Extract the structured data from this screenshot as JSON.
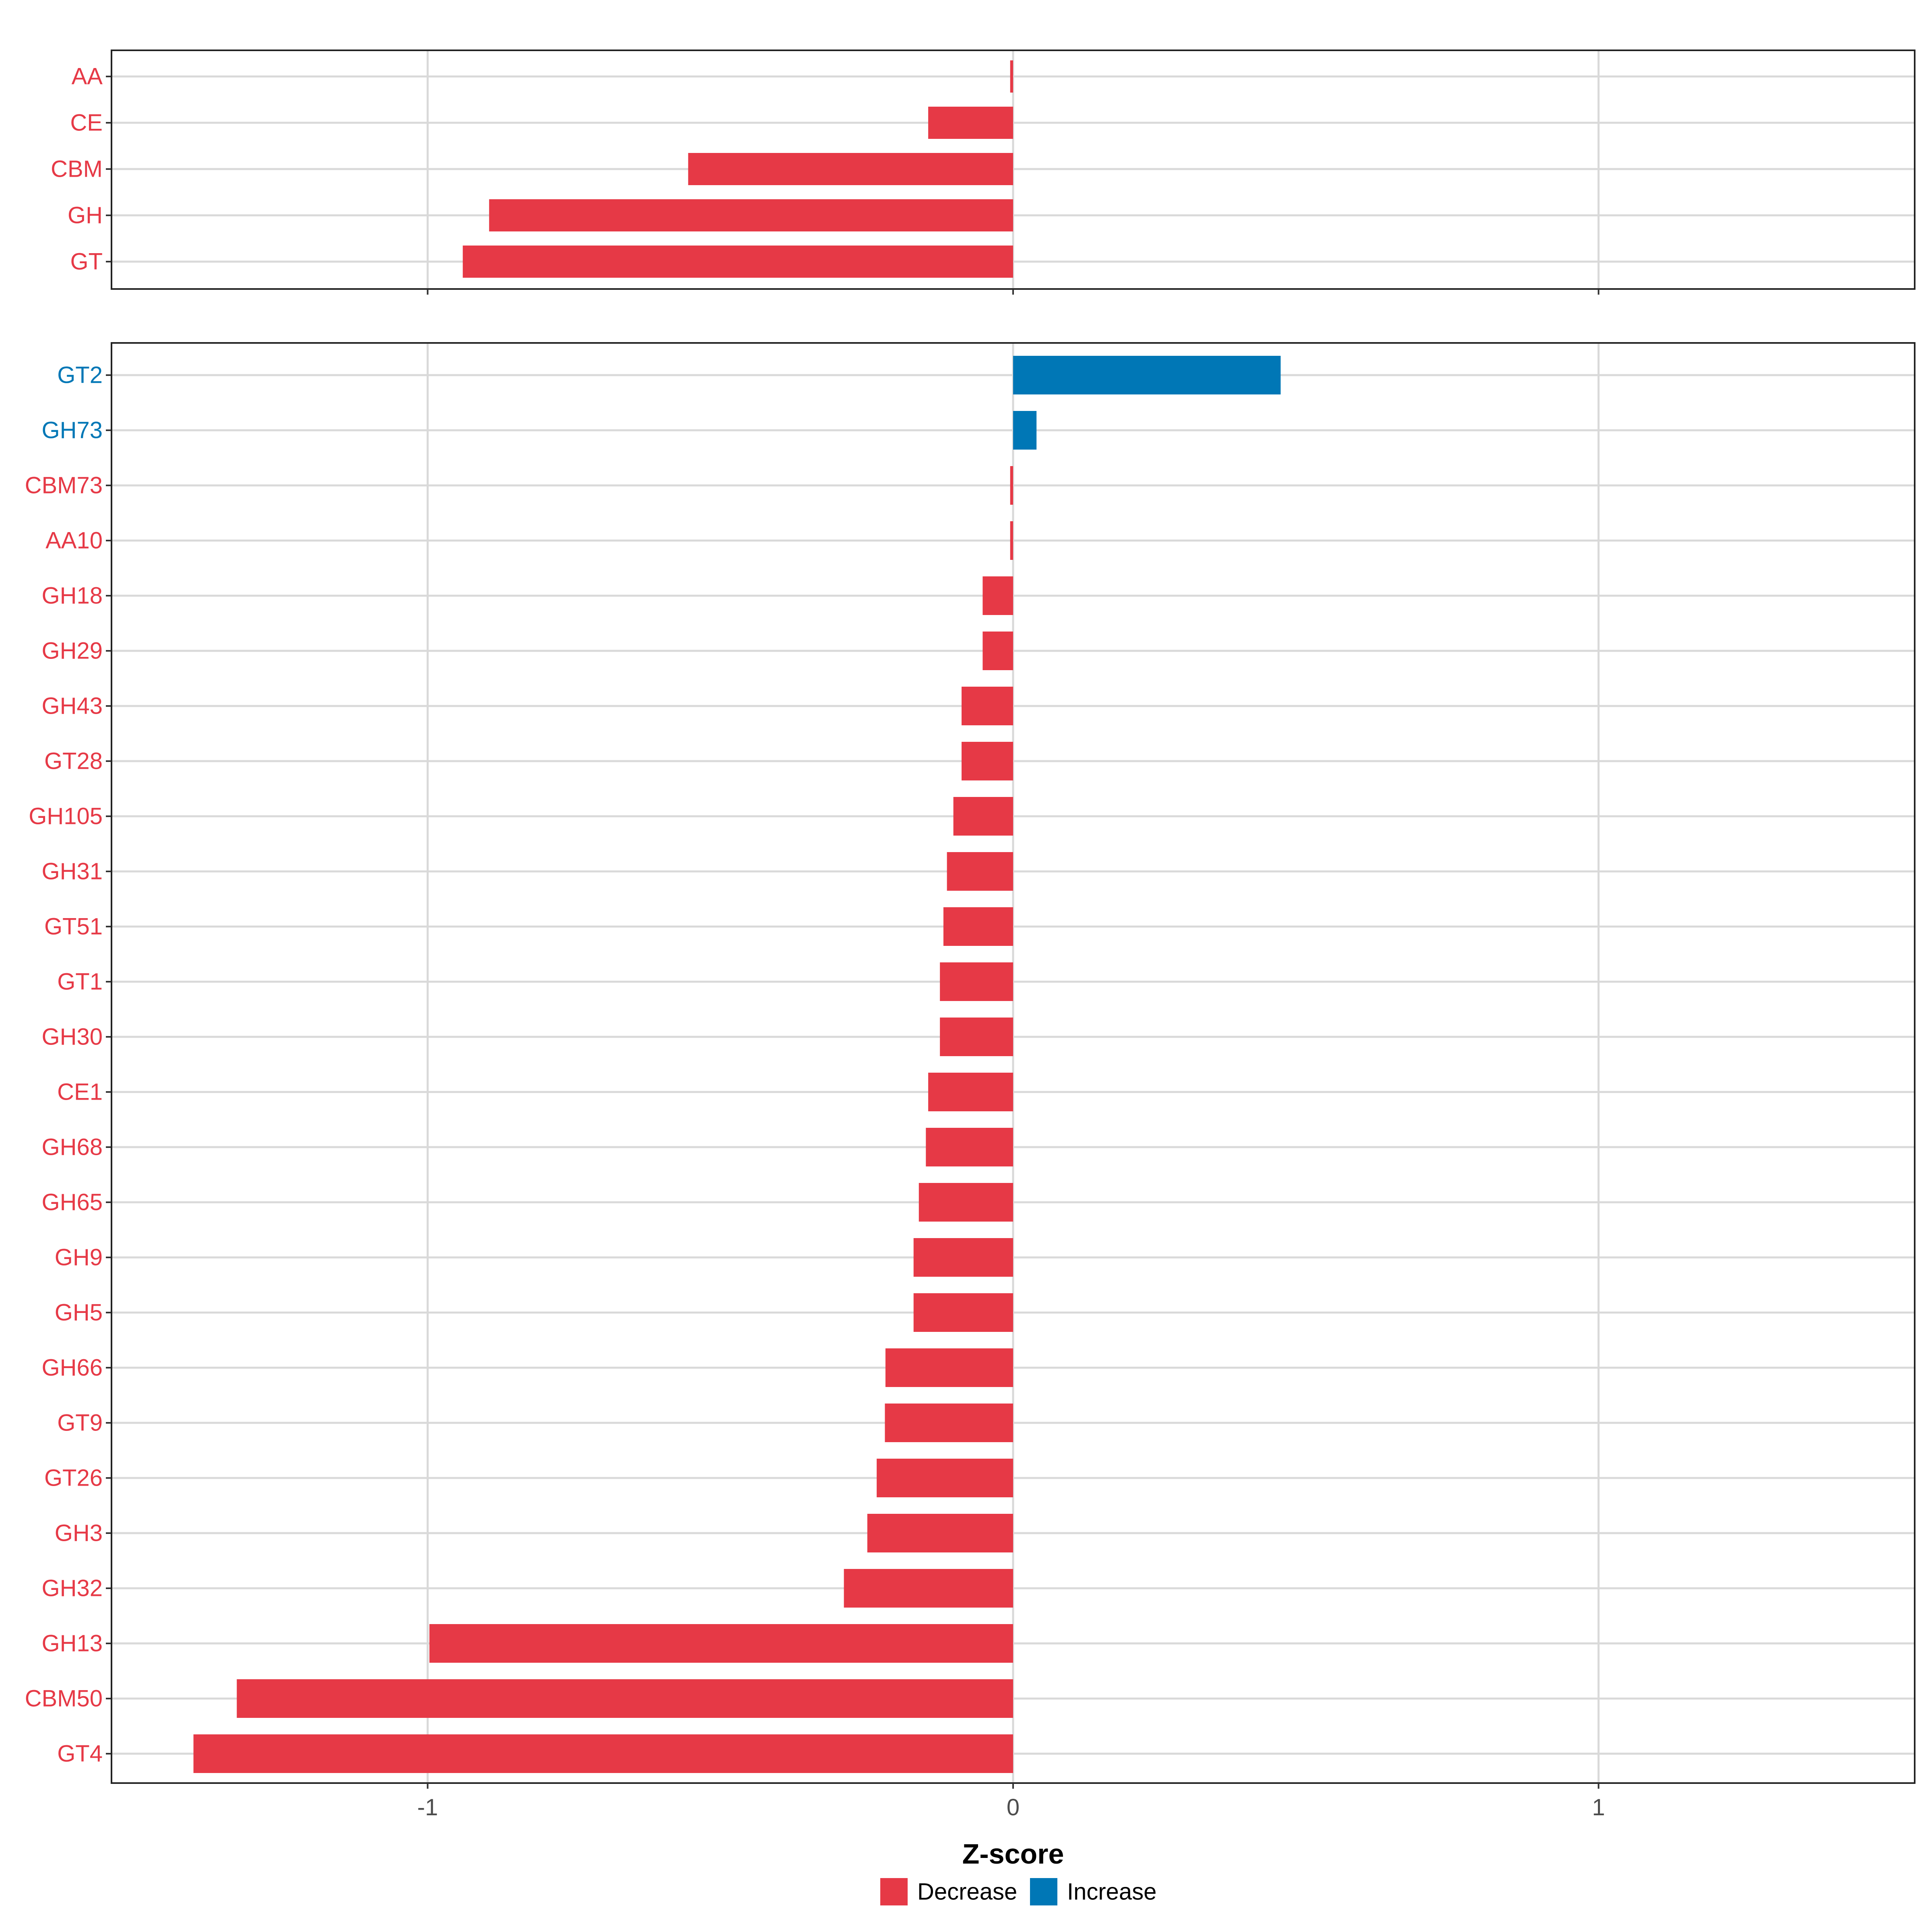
{
  "colors": {
    "Decrease": "#E63946",
    "Increase": "#0077B6"
  },
  "chart_data": {
    "type": "bar",
    "orientation": "horizontal",
    "xlabel": "Z-score",
    "xlim": [
      -1.54,
      1.54
    ],
    "xticks": [
      -1,
      0,
      1
    ],
    "xtick_labels": [
      "-1",
      "0",
      "1"
    ],
    "grid": true,
    "legend": {
      "position": "bottom",
      "entries": [
        {
          "name": "Decrease",
          "color": "#E63946"
        },
        {
          "name": "Increase",
          "color": "#0077B6"
        }
      ]
    },
    "panels": [
      {
        "categories": [
          "AA",
          "CE",
          "CBM",
          "GH",
          "GT"
        ],
        "values": [
          -0.005,
          -0.145,
          -0.555,
          -0.895,
          -0.94
        ],
        "direction": [
          "Decrease",
          "Decrease",
          "Decrease",
          "Decrease",
          "Decrease"
        ]
      },
      {
        "categories": [
          "GT2",
          "GH73",
          "CBM73",
          "AA10",
          "GH18",
          "GH29",
          "GH43",
          "GT28",
          "GH105",
          "GH31",
          "GT51",
          "GT1",
          "GH30",
          "CE1",
          "GH68",
          "GH65",
          "GH9",
          "GH5",
          "GH66",
          "GT9",
          "GT26",
          "GH3",
          "GH32",
          "GH13",
          "CBM50",
          "GT4"
        ],
        "values": [
          0.457,
          0.04,
          -0.005,
          -0.005,
          -0.052,
          -0.052,
          -0.088,
          -0.088,
          -0.102,
          -0.113,
          -0.119,
          -0.125,
          -0.125,
          -0.145,
          -0.149,
          -0.161,
          -0.17,
          -0.17,
          -0.218,
          -0.219,
          -0.233,
          -0.249,
          -0.289,
          -0.997,
          -1.326,
          -1.4
        ],
        "direction": [
          "Increase",
          "Increase",
          "Decrease",
          "Decrease",
          "Decrease",
          "Decrease",
          "Decrease",
          "Decrease",
          "Decrease",
          "Decrease",
          "Decrease",
          "Decrease",
          "Decrease",
          "Decrease",
          "Decrease",
          "Decrease",
          "Decrease",
          "Decrease",
          "Decrease",
          "Decrease",
          "Decrease",
          "Decrease",
          "Decrease",
          "Decrease",
          "Decrease",
          "Decrease"
        ]
      }
    ]
  }
}
